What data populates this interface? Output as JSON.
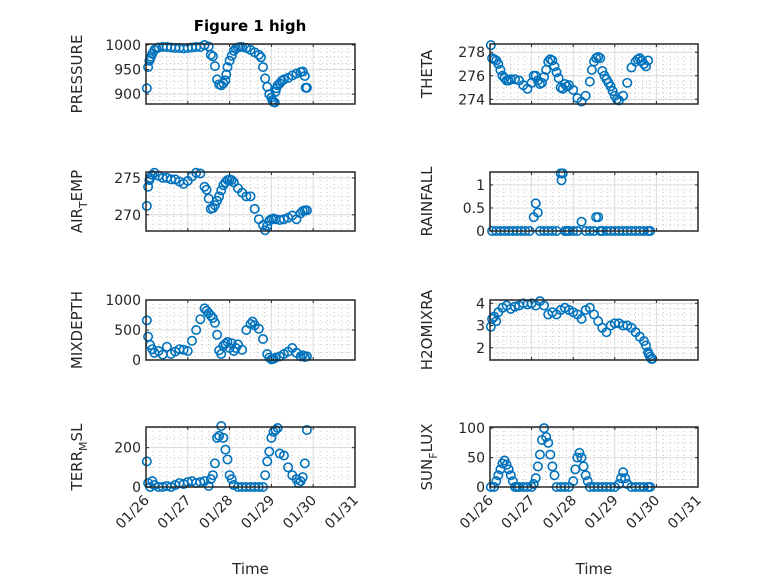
{
  "figure_title": "Figure 1 high",
  "chart_data": [
    {
      "type": "scatter",
      "ylabel": "PRESSURE",
      "title": "Figure 1 high",
      "xlabel": "",
      "xlim": [
        "01/26",
        "01/31"
      ],
      "ylim": [
        880,
        1002
      ],
      "yticks": [
        900,
        950,
        1000
      ],
      "xticks": [
        "01/26",
        "01/27",
        "01/28",
        "01/29",
        "01/30",
        "01/31"
      ],
      "grid": true,
      "x": [
        0.02,
        0.05,
        0.08,
        0.1,
        0.12,
        0.15,
        0.2,
        0.25,
        0.3,
        0.4,
        0.5,
        0.6,
        0.7,
        0.8,
        0.9,
        1.0,
        1.1,
        1.2,
        1.3,
        1.4,
        1.5,
        1.55,
        1.6,
        1.65,
        1.7,
        1.75,
        1.8,
        1.85,
        1.9,
        1.92,
        1.95,
        2.0,
        2.05,
        2.1,
        2.15,
        2.2,
        2.25,
        2.3,
        2.4,
        2.5,
        2.6,
        2.7,
        2.75,
        2.8,
        2.85,
        2.9,
        2.95,
        3.0,
        3.02,
        3.05,
        3.08,
        3.1,
        3.12,
        3.15,
        3.2,
        3.25,
        3.3,
        3.4,
        3.5,
        3.6,
        3.7,
        3.75,
        3.8,
        3.82,
        3.85
      ],
      "y": [
        912,
        955,
        968,
        972,
        976,
        982,
        990,
        993,
        995,
        996,
        996,
        995,
        994,
        994,
        993,
        994,
        995,
        996,
        996,
        1000,
        997,
        980,
        977,
        957,
        930,
        920,
        918,
        922,
        928,
        940,
        955,
        968,
        978,
        988,
        993,
        995,
        996,
        996,
        994,
        990,
        985,
        980,
        975,
        955,
        932,
        915,
        900,
        893,
        888,
        884,
        883,
        905,
        912,
        918,
        922,
        927,
        930,
        933,
        938,
        942,
        945,
        946,
        937,
        913,
        913
      ],
      "marker": "open-circle",
      "color": "#0072BD"
    },
    {
      "type": "scatter",
      "ylabel": "THETA",
      "ylim": [
        273.6,
        278.7
      ],
      "yticks": [
        274,
        276,
        278
      ],
      "xticks": [
        "01/26",
        "01/27",
        "01/28",
        "01/29",
        "01/30",
        "01/31"
      ],
      "grid": true,
      "x": [
        0.02,
        0.05,
        0.1,
        0.15,
        0.2,
        0.25,
        0.3,
        0.35,
        0.4,
        0.45,
        0.5,
        0.6,
        0.7,
        0.8,
        0.9,
        1.0,
        1.05,
        1.1,
        1.15,
        1.2,
        1.25,
        1.3,
        1.35,
        1.4,
        1.45,
        1.5,
        1.55,
        1.6,
        1.65,
        1.7,
        1.75,
        1.8,
        1.85,
        1.9,
        2.0,
        2.1,
        2.2,
        2.3,
        2.4,
        2.45,
        2.5,
        2.55,
        2.6,
        2.65,
        2.7,
        2.75,
        2.8,
        2.85,
        2.9,
        2.95,
        3.0,
        3.05,
        3.1,
        3.2,
        3.3,
        3.4,
        3.5,
        3.55,
        3.6,
        3.65,
        3.7,
        3.75,
        3.8
      ],
      "y": [
        278.6,
        277.5,
        277.4,
        277.3,
        277.0,
        276.5,
        276.0,
        275.8,
        275.6,
        275.6,
        275.7,
        275.7,
        275.6,
        275.2,
        274.9,
        275.4,
        276.0,
        276.0,
        275.6,
        275.3,
        275.4,
        275.9,
        276.5,
        277.2,
        277.4,
        277.3,
        276.8,
        276.3,
        275.8,
        275.0,
        274.9,
        275.3,
        275.1,
        275.2,
        274.8,
        274.1,
        273.8,
        274.3,
        275.5,
        276.5,
        277.2,
        277.5,
        277.6,
        277.5,
        276.4,
        276.0,
        275.7,
        275.4,
        275.1,
        274.7,
        274.3,
        274.0,
        273.9,
        274.3,
        275.4,
        276.7,
        277.2,
        277.4,
        277.5,
        277.3,
        277.0,
        276.8,
        277.3
      ],
      "marker": "open-circle",
      "color": "#0072BD"
    },
    {
      "type": "scatter",
      "ylabel": "AIR_TEMP",
      "ylim": [
        267.8,
        275.8
      ],
      "yticks": [
        270,
        275
      ],
      "xticks": [
        "01/26",
        "01/27",
        "01/28",
        "01/29",
        "01/30",
        "01/31"
      ],
      "grid": true,
      "x": [
        0.02,
        0.05,
        0.08,
        0.1,
        0.15,
        0.2,
        0.3,
        0.4,
        0.5,
        0.6,
        0.7,
        0.8,
        0.9,
        1.0,
        1.1,
        1.2,
        1.3,
        1.4,
        1.45,
        1.5,
        1.55,
        1.6,
        1.65,
        1.7,
        1.75,
        1.8,
        1.85,
        1.9,
        1.95,
        2.0,
        2.05,
        2.1,
        2.2,
        2.3,
        2.4,
        2.5,
        2.6,
        2.7,
        2.8,
        2.85,
        2.9,
        2.95,
        3.0,
        3.05,
        3.1,
        3.2,
        3.3,
        3.4,
        3.5,
        3.6,
        3.7,
        3.75,
        3.8,
        3.85
      ],
      "y": [
        271.2,
        273.8,
        274.7,
        275.0,
        275.4,
        275.7,
        275.3,
        275.0,
        275.0,
        274.8,
        274.8,
        274.5,
        274.2,
        274.6,
        275.2,
        275.7,
        275.6,
        273.8,
        273.4,
        272.2,
        270.8,
        270.9,
        271.3,
        271.9,
        272.5,
        273.3,
        274.0,
        274.4,
        274.7,
        274.8,
        274.7,
        274.4,
        273.6,
        273.0,
        272.5,
        272.5,
        270.8,
        269.4,
        268.6,
        267.9,
        268.5,
        269.2,
        269.4,
        269.5,
        269.4,
        269.3,
        269.4,
        269.6,
        269.9,
        269.4,
        270.2,
        270.5,
        270.6,
        270.6
      ],
      "marker": "open-circle",
      "color": "#0072BD"
    },
    {
      "type": "scatter",
      "ylabel": "RAINFALL",
      "ylim": [
        0,
        1.28
      ],
      "yticks": [
        0,
        0.5,
        1
      ],
      "xticks": [
        "01/26",
        "01/27",
        "01/28",
        "01/29",
        "01/30",
        "01/31"
      ],
      "grid": true,
      "x": [
        0.05,
        0.15,
        0.25,
        0.35,
        0.45,
        0.55,
        0.65,
        0.75,
        0.85,
        0.95,
        1.05,
        1.1,
        1.15,
        1.2,
        1.3,
        1.4,
        1.5,
        1.6,
        1.7,
        1.72,
        1.75,
        1.8,
        1.85,
        1.9,
        2.0,
        2.1,
        2.2,
        2.3,
        2.4,
        2.5,
        2.55,
        2.6,
        2.65,
        2.7,
        2.8,
        2.9,
        3.0,
        3.1,
        3.2,
        3.3,
        3.4,
        3.5,
        3.6,
        3.7,
        3.8,
        3.85
      ],
      "y": [
        0,
        0,
        0,
        0,
        0,
        0,
        0,
        0,
        0,
        0,
        0.3,
        0.6,
        0.4,
        0,
        0,
        0,
        0,
        0,
        1.25,
        1.1,
        1.25,
        0,
        0,
        0,
        0,
        0,
        0.2,
        0,
        0,
        0,
        0.3,
        0.3,
        0,
        0,
        0,
        0,
        0,
        0,
        0,
        0,
        0,
        0,
        0,
        0,
        0,
        0
      ],
      "marker": "open-circle",
      "color": "#0072BD"
    },
    {
      "type": "scatter",
      "ylabel": "MIXDEPTH",
      "ylim": [
        0,
        1000
      ],
      "yticks": [
        0,
        500,
        1000
      ],
      "xticks": [
        "01/26",
        "01/27",
        "01/28",
        "01/29",
        "01/30",
        "01/31"
      ],
      "grid": true,
      "x": [
        0.02,
        0.05,
        0.1,
        0.15,
        0.2,
        0.3,
        0.4,
        0.5,
        0.6,
        0.7,
        0.8,
        0.9,
        1.0,
        1.1,
        1.2,
        1.3,
        1.4,
        1.45,
        1.5,
        1.55,
        1.6,
        1.65,
        1.7,
        1.75,
        1.8,
        1.85,
        1.9,
        1.95,
        2.0,
        2.05,
        2.1,
        2.15,
        2.2,
        2.3,
        2.4,
        2.5,
        2.55,
        2.6,
        2.7,
        2.8,
        2.9,
        2.95,
        3.0,
        3.05,
        3.1,
        3.2,
        3.3,
        3.4,
        3.5,
        3.6,
        3.7,
        3.75,
        3.8,
        3.85
      ],
      "y": [
        660,
        390,
        250,
        180,
        120,
        150,
        90,
        220,
        100,
        140,
        180,
        170,
        150,
        320,
        500,
        680,
        860,
        820,
        780,
        740,
        700,
        620,
        420,
        160,
        100,
        240,
        270,
        300,
        200,
        280,
        150,
        200,
        260,
        170,
        500,
        600,
        640,
        580,
        520,
        350,
        100,
        40,
        10,
        20,
        40,
        60,
        100,
        140,
        200,
        120,
        60,
        80,
        50,
        60
      ],
      "marker": "open-circle",
      "color": "#0072BD"
    },
    {
      "type": "scatter",
      "ylabel": "H2OMIXRA",
      "ylim": [
        1.45,
        4.15
      ],
      "yticks": [
        2,
        3,
        4
      ],
      "xticks": [
        "01/26",
        "01/27",
        "01/28",
        "01/29",
        "01/30",
        "01/31"
      ],
      "grid": true,
      "x": [
        0.02,
        0.05,
        0.1,
        0.15,
        0.2,
        0.3,
        0.4,
        0.5,
        0.6,
        0.7,
        0.8,
        0.9,
        1.0,
        1.1,
        1.2,
        1.3,
        1.4,
        1.5,
        1.6,
        1.7,
        1.8,
        1.9,
        2.0,
        2.1,
        2.2,
        2.3,
        2.4,
        2.5,
        2.6,
        2.7,
        2.8,
        2.9,
        3.0,
        3.1,
        3.2,
        3.3,
        3.4,
        3.5,
        3.6,
        3.7,
        3.75,
        3.8,
        3.82,
        3.85,
        3.88,
        3.9
      ],
      "y": [
        2.95,
        3.3,
        3.4,
        3.2,
        3.6,
        3.8,
        3.9,
        3.75,
        3.85,
        3.9,
        4.0,
        3.95,
        4.0,
        3.9,
        4.1,
        3.9,
        3.5,
        3.6,
        3.5,
        3.7,
        3.8,
        3.7,
        3.6,
        3.5,
        3.3,
        3.7,
        3.8,
        3.5,
        3.2,
        2.9,
        2.7,
        3.0,
        3.1,
        3.1,
        3.0,
        3.0,
        2.9,
        2.7,
        2.5,
        2.3,
        2.1,
        1.8,
        1.7,
        1.6,
        1.5,
        1.5
      ],
      "marker": "open-circle",
      "color": "#0072BD"
    },
    {
      "type": "scatter",
      "ylabel": "TERR_MSL",
      "xlabel": "Time",
      "ylim": [
        0,
        305
      ],
      "yticks": [
        0,
        200
      ],
      "xticks": [
        "01/26",
        "01/27",
        "01/28",
        "01/29",
        "01/30",
        "01/31"
      ],
      "grid": true,
      "x": [
        0.02,
        0.05,
        0.1,
        0.15,
        0.2,
        0.3,
        0.4,
        0.5,
        0.6,
        0.7,
        0.8,
        0.9,
        1.0,
        1.1,
        1.2,
        1.3,
        1.4,
        1.5,
        1.55,
        1.6,
        1.65,
        1.7,
        1.75,
        1.8,
        1.85,
        1.9,
        1.95,
        2.0,
        2.05,
        2.1,
        2.2,
        2.3,
        2.4,
        2.5,
        2.6,
        2.7,
        2.8,
        2.85,
        2.9,
        2.95,
        3.0,
        3.05,
        3.1,
        3.15,
        3.2,
        3.3,
        3.4,
        3.5,
        3.6,
        3.65,
        3.7,
        3.75,
        3.8,
        3.85
      ],
      "y": [
        130,
        20,
        0,
        30,
        10,
        0,
        0,
        5,
        0,
        10,
        20,
        15,
        25,
        30,
        20,
        25,
        30,
        5,
        40,
        60,
        120,
        250,
        260,
        310,
        250,
        190,
        140,
        60,
        40,
        10,
        0,
        0,
        0,
        0,
        0,
        0,
        0,
        60,
        130,
        180,
        250,
        280,
        290,
        300,
        170,
        160,
        100,
        60,
        40,
        20,
        30,
        50,
        120,
        290
      ],
      "marker": "open-circle",
      "color": "#0072BD"
    },
    {
      "type": "scatter",
      "ylabel": "SUN_FLUX",
      "xlabel": "Time",
      "ylim": [
        0,
        102
      ],
      "yticks": [
        0,
        50,
        100
      ],
      "xticks": [
        "01/26",
        "01/27",
        "01/28",
        "01/29",
        "01/30",
        "01/31"
      ],
      "grid": true,
      "x": [
        0.02,
        0.1,
        0.15,
        0.2,
        0.25,
        0.3,
        0.35,
        0.4,
        0.45,
        0.5,
        0.55,
        0.6,
        0.65,
        0.7,
        0.8,
        0.9,
        1.0,
        1.05,
        1.1,
        1.15,
        1.2,
        1.25,
        1.3,
        1.35,
        1.4,
        1.45,
        1.5,
        1.55,
        1.6,
        1.7,
        1.8,
        1.9,
        2.0,
        2.05,
        2.1,
        2.15,
        2.2,
        2.25,
        2.3,
        2.35,
        2.4,
        2.5,
        2.6,
        2.7,
        2.8,
        2.9,
        3.0,
        3.1,
        3.15,
        3.2,
        3.25,
        3.3,
        3.4,
        3.5,
        3.6,
        3.7,
        3.8,
        3.85
      ],
      "y": [
        0,
        0,
        10,
        20,
        30,
        40,
        45,
        38,
        30,
        20,
        10,
        0,
        0,
        0,
        0,
        0,
        0,
        5,
        15,
        35,
        55,
        80,
        100,
        85,
        75,
        55,
        35,
        20,
        0,
        0,
        0,
        0,
        10,
        30,
        50,
        58,
        50,
        35,
        20,
        10,
        0,
        0,
        0,
        0,
        0,
        0,
        0,
        5,
        15,
        25,
        15,
        5,
        0,
        0,
        0,
        0,
        0,
        0
      ],
      "marker": "open-circle",
      "color": "#0072BD"
    }
  ]
}
